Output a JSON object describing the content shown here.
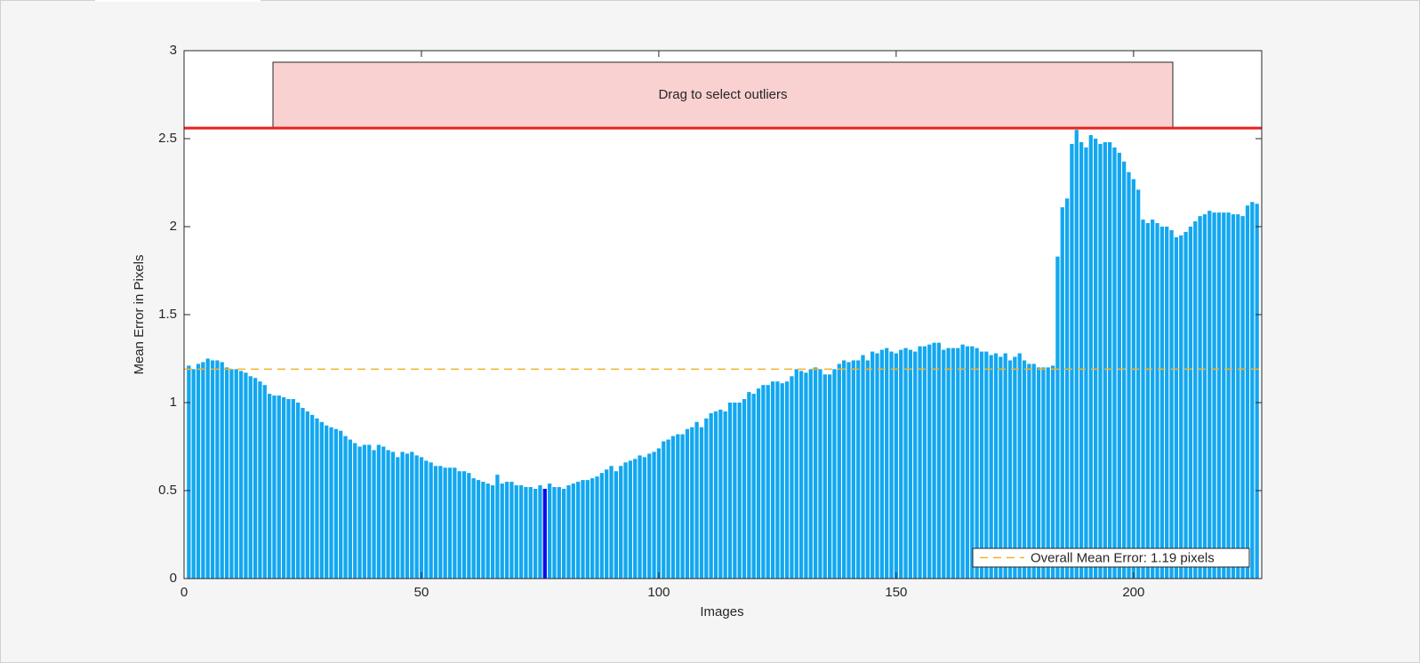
{
  "chart_data": {
    "type": "bar",
    "xlabel": "Images",
    "ylabel": "Mean Error in Pixels",
    "outlier_box_label": "Drag to select outliers",
    "legend_label": "Overall Mean Error: 1.19 pixels",
    "legend_position": "lower right",
    "mean": 1.19,
    "mean_color": "#f0b32e",
    "threshold": 2.56,
    "threshold_color": "#e8231c",
    "color": "#12a7f0",
    "highlight": {
      "x": 76,
      "color": "#0a0aee"
    },
    "xlim": [
      0,
      227
    ],
    "xticks": [
      0,
      50,
      100,
      150,
      200
    ],
    "ylim": [
      0,
      3
    ],
    "yticks": [
      0,
      0.5,
      1,
      1.5,
      2,
      2.5,
      3
    ],
    "x": [
      1,
      2,
      3,
      4,
      5,
      6,
      7,
      8,
      9,
      10,
      11,
      12,
      13,
      14,
      15,
      16,
      17,
      18,
      19,
      20,
      21,
      22,
      23,
      24,
      25,
      26,
      27,
      28,
      29,
      30,
      31,
      32,
      33,
      34,
      35,
      36,
      37,
      38,
      39,
      40,
      41,
      42,
      43,
      44,
      45,
      46,
      47,
      48,
      49,
      50,
      51,
      52,
      53,
      54,
      55,
      56,
      57,
      58,
      59,
      60,
      61,
      62,
      63,
      64,
      65,
      66,
      67,
      68,
      69,
      70,
      71,
      72,
      73,
      74,
      75,
      76,
      77,
      78,
      79,
      80,
      81,
      82,
      83,
      84,
      85,
      86,
      87,
      88,
      89,
      90,
      91,
      92,
      93,
      94,
      95,
      96,
      97,
      98,
      99,
      100,
      101,
      102,
      103,
      104,
      105,
      106,
      107,
      108,
      109,
      110,
      111,
      112,
      113,
      114,
      115,
      116,
      117,
      118,
      119,
      120,
      121,
      122,
      123,
      124,
      125,
      126,
      127,
      128,
      129,
      130,
      131,
      132,
      133,
      134,
      135,
      136,
      137,
      138,
      139,
      140,
      141,
      142,
      143,
      144,
      145,
      146,
      147,
      148,
      149,
      150,
      151,
      152,
      153,
      154,
      155,
      156,
      157,
      158,
      159,
      160,
      161,
      162,
      163,
      164,
      165,
      166,
      167,
      168,
      169,
      170,
      171,
      172,
      173,
      174,
      175,
      176,
      177,
      178,
      179,
      180,
      181,
      182,
      183,
      184,
      185,
      186,
      187,
      188,
      189,
      190,
      191,
      192,
      193,
      194,
      195,
      196,
      197,
      198,
      199,
      200,
      201,
      202,
      203,
      204,
      205,
      206,
      207,
      208,
      209,
      210,
      211,
      212,
      213,
      214,
      215,
      216,
      217,
      218,
      219,
      220,
      221,
      222,
      223,
      224,
      225,
      226
    ],
    "values": [
      1.21,
      1.19,
      1.22,
      1.23,
      1.25,
      1.24,
      1.24,
      1.23,
      1.2,
      1.19,
      1.19,
      1.18,
      1.17,
      1.15,
      1.14,
      1.12,
      1.1,
      1.05,
      1.04,
      1.04,
      1.03,
      1.02,
      1.02,
      1.0,
      0.97,
      0.95,
      0.93,
      0.91,
      0.89,
      0.87,
      0.86,
      0.85,
      0.84,
      0.81,
      0.79,
      0.77,
      0.75,
      0.76,
      0.76,
      0.73,
      0.76,
      0.75,
      0.73,
      0.72,
      0.69,
      0.72,
      0.71,
      0.72,
      0.7,
      0.69,
      0.67,
      0.66,
      0.64,
      0.64,
      0.63,
      0.63,
      0.63,
      0.61,
      0.61,
      0.6,
      0.57,
      0.56,
      0.55,
      0.54,
      0.53,
      0.59,
      0.54,
      0.55,
      0.55,
      0.53,
      0.53,
      0.52,
      0.52,
      0.51,
      0.53,
      0.51,
      0.54,
      0.52,
      0.52,
      0.51,
      0.53,
      0.54,
      0.55,
      0.56,
      0.56,
      0.57,
      0.58,
      0.6,
      0.62,
      0.64,
      0.61,
      0.64,
      0.66,
      0.67,
      0.68,
      0.7,
      0.69,
      0.71,
      0.72,
      0.74,
      0.78,
      0.79,
      0.81,
      0.82,
      0.82,
      0.85,
      0.86,
      0.89,
      0.86,
      0.91,
      0.94,
      0.95,
      0.96,
      0.95,
      1.0,
      1.0,
      1.0,
      1.02,
      1.06,
      1.05,
      1.08,
      1.1,
      1.1,
      1.12,
      1.12,
      1.11,
      1.12,
      1.15,
      1.19,
      1.18,
      1.17,
      1.19,
      1.2,
      1.19,
      1.16,
      1.16,
      1.19,
      1.22,
      1.24,
      1.23,
      1.24,
      1.24,
      1.27,
      1.24,
      1.29,
      1.28,
      1.3,
      1.31,
      1.29,
      1.28,
      1.3,
      1.31,
      1.3,
      1.29,
      1.32,
      1.32,
      1.33,
      1.34,
      1.34,
      1.3,
      1.31,
      1.31,
      1.31,
      1.33,
      1.32,
      1.32,
      1.31,
      1.29,
      1.29,
      1.27,
      1.28,
      1.26,
      1.28,
      1.24,
      1.26,
      1.28,
      1.24,
      1.22,
      1.22,
      1.2,
      1.2,
      1.2,
      1.21,
      1.83,
      2.11,
      2.16,
      2.47,
      2.55,
      2.48,
      2.45,
      2.52,
      2.5,
      2.47,
      2.48,
      2.48,
      2.45,
      2.42,
      2.37,
      2.31,
      2.27,
      2.21,
      2.04,
      2.02,
      2.04,
      2.02,
      2.0,
      2.0,
      1.98,
      1.94,
      1.95,
      1.97,
      2.0,
      2.03,
      2.06,
      2.07,
      2.09,
      2.08,
      2.08,
      2.08,
      2.08,
      2.07,
      2.07,
      2.06,
      2.12,
      2.14,
      2.13
    ]
  }
}
